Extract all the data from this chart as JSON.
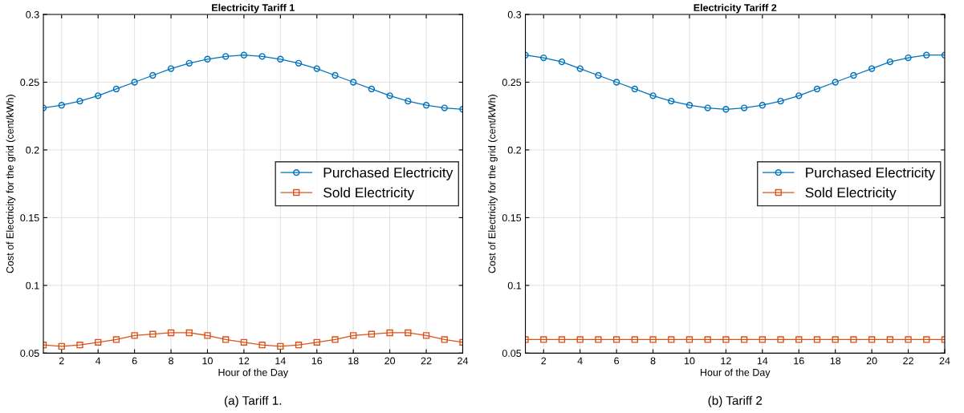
{
  "chart_data": [
    {
      "type": "line",
      "title": "Electricity Tariff 1",
      "xlabel": "Hour of the Day",
      "ylabel": "Cost of Electricity for the grid (cent/kWh)",
      "x": [
        1,
        2,
        3,
        4,
        5,
        6,
        7,
        8,
        9,
        10,
        11,
        12,
        13,
        14,
        15,
        16,
        17,
        18,
        19,
        20,
        21,
        22,
        23,
        24
      ],
      "series": [
        {
          "name": "Purchased Electricity",
          "color": "#0072bd",
          "marker": "circle",
          "values": [
            0.231,
            0.233,
            0.236,
            0.24,
            0.245,
            0.25,
            0.255,
            0.26,
            0.264,
            0.267,
            0.269,
            0.27,
            0.269,
            0.267,
            0.264,
            0.26,
            0.255,
            0.25,
            0.245,
            0.24,
            0.236,
            0.233,
            0.231,
            0.23
          ]
        },
        {
          "name": "Sold Electricity",
          "color": "#d95319",
          "marker": "square",
          "values": [
            0.056,
            0.055,
            0.056,
            0.058,
            0.06,
            0.063,
            0.064,
            0.065,
            0.065,
            0.063,
            0.06,
            0.058,
            0.056,
            0.055,
            0.056,
            0.058,
            0.06,
            0.063,
            0.064,
            0.065,
            0.065,
            0.063,
            0.06,
            0.058
          ]
        }
      ],
      "xlim": [
        1,
        24
      ],
      "xticks": [
        2,
        4,
        6,
        8,
        10,
        12,
        14,
        16,
        18,
        20,
        22,
        24
      ],
      "ylim": [
        0.05,
        0.3
      ],
      "yticks": [
        0.05,
        0.1,
        0.15,
        0.2,
        0.25,
        0.3
      ],
      "grid": true,
      "legend": "right",
      "annotations": [
        "(a) Tariff 1."
      ]
    },
    {
      "type": "line",
      "title": "Electricity Tariff 2",
      "xlabel": "Hour of the Day",
      "ylabel": "Cost of Electricity for the grid (cent/kWh)",
      "x": [
        1,
        2,
        3,
        4,
        5,
        6,
        7,
        8,
        9,
        10,
        11,
        12,
        13,
        14,
        15,
        16,
        17,
        18,
        19,
        20,
        21,
        22,
        23,
        24
      ],
      "series": [
        {
          "name": "Purchased Electricity",
          "color": "#0072bd",
          "marker": "circle",
          "values": [
            0.27,
            0.268,
            0.265,
            0.26,
            0.255,
            0.25,
            0.245,
            0.24,
            0.236,
            0.233,
            0.231,
            0.23,
            0.231,
            0.233,
            0.236,
            0.24,
            0.245,
            0.25,
            0.255,
            0.26,
            0.265,
            0.268,
            0.27,
            0.27
          ]
        },
        {
          "name": "Sold Electricity",
          "color": "#d95319",
          "marker": "square",
          "values": [
            0.06,
            0.06,
            0.06,
            0.06,
            0.06,
            0.06,
            0.06,
            0.06,
            0.06,
            0.06,
            0.06,
            0.06,
            0.06,
            0.06,
            0.06,
            0.06,
            0.06,
            0.06,
            0.06,
            0.06,
            0.06,
            0.06,
            0.06,
            0.06
          ]
        }
      ],
      "xlim": [
        1,
        24
      ],
      "xticks": [
        2,
        4,
        6,
        8,
        10,
        12,
        14,
        16,
        18,
        20,
        22,
        24
      ],
      "ylim": [
        0.05,
        0.3
      ],
      "yticks": [
        0.05,
        0.1,
        0.15,
        0.2,
        0.25,
        0.3
      ],
      "grid": true,
      "legend": "right",
      "annotations": [
        "(b) Tariff 2"
      ]
    }
  ]
}
